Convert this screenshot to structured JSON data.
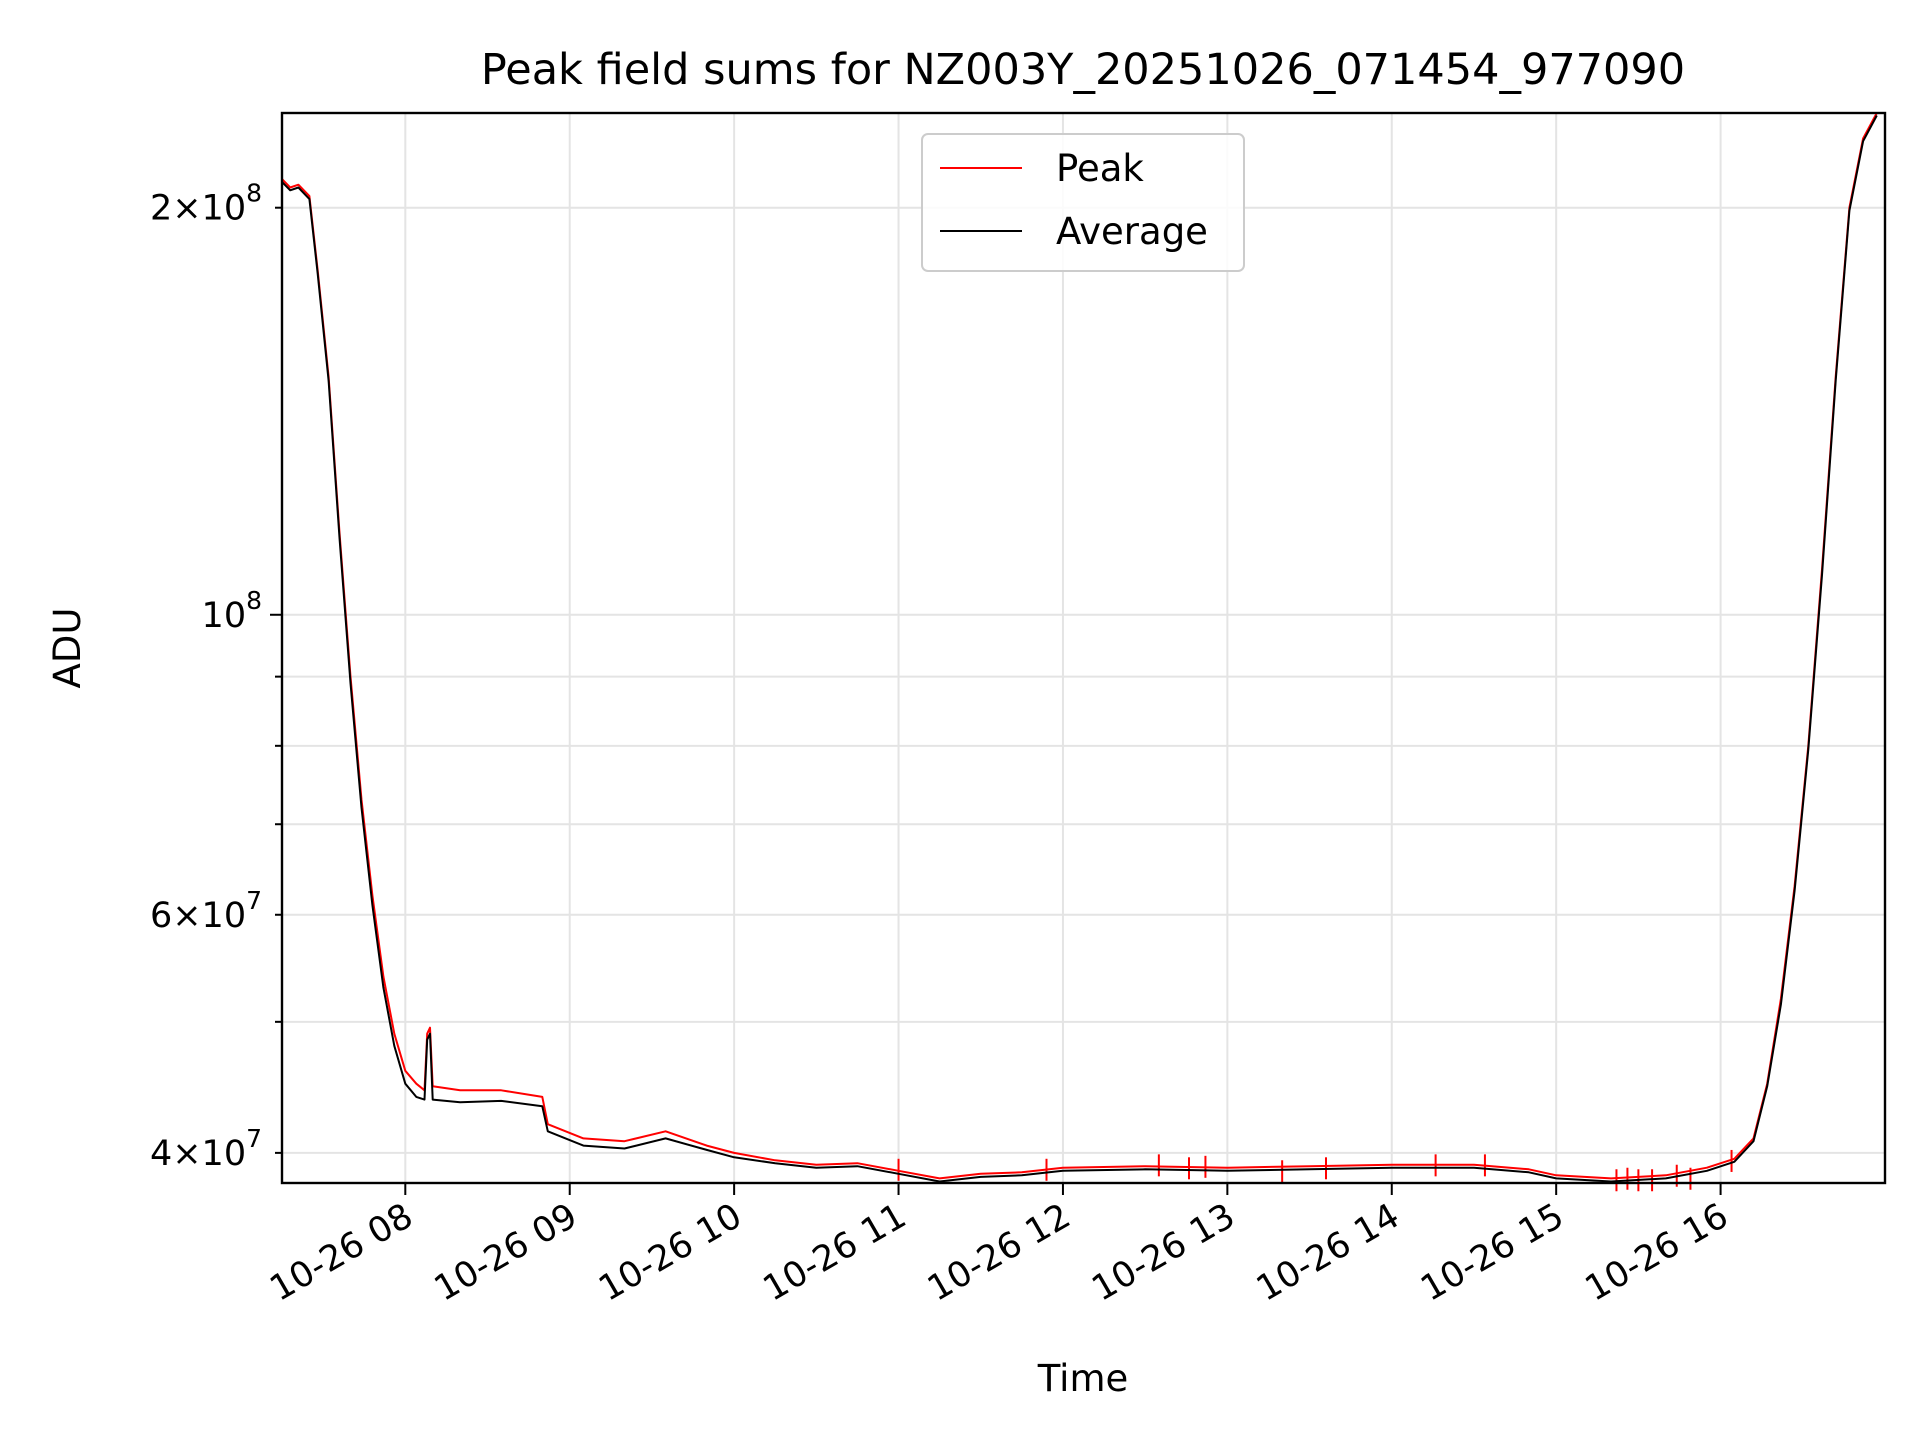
{
  "chart_data": {
    "type": "line",
    "title": "Peak field sums for NZ003Y_20251026_071454_977090",
    "xlabel": "Time",
    "ylabel": "ADU",
    "yscale": "log",
    "grid": true,
    "legend": {
      "placement": "upper-center"
    },
    "xlim": [
      "10-26 07:15",
      "10-26 17:00"
    ],
    "ylim": [
      38000000,
      235000000
    ],
    "x_ticks": [
      {
        "t": "10-26 08:00",
        "label": "10-26 08"
      },
      {
        "t": "10-26 09:00",
        "label": "10-26 09"
      },
      {
        "t": "10-26 10:00",
        "label": "10-26 10"
      },
      {
        "t": "10-26 11:00",
        "label": "10-26 11"
      },
      {
        "t": "10-26 12:00",
        "label": "10-26 12"
      },
      {
        "t": "10-26 13:00",
        "label": "10-26 13"
      },
      {
        "t": "10-26 14:00",
        "label": "10-26 14"
      },
      {
        "t": "10-26 15:00",
        "label": "10-26 15"
      },
      {
        "t": "10-26 16:00",
        "label": "10-26 16"
      }
    ],
    "y_ticks_major": [
      {
        "v": 100000000,
        "base": "10",
        "exp": "8"
      }
    ],
    "y_ticks_minor": [
      {
        "v": 40000000,
        "base": "4×10",
        "exp": "7"
      },
      {
        "v": 60000000,
        "base": "6×10",
        "exp": "7"
      },
      {
        "v": 200000000,
        "base": "2×10",
        "exp": "8"
      }
    ],
    "y_ticks_minor_unlabeled": [
      50000000,
      70000000,
      80000000,
      90000000
    ],
    "series": [
      {
        "name": "Peak",
        "color": "#ff0000",
        "points": [
          [
            "10-26 07:15",
            210000000
          ],
          [
            "10-26 07:18",
            207000000
          ],
          [
            "10-26 07:21",
            208000000
          ],
          [
            "10-26 07:25",
            204000000
          ],
          [
            "10-26 07:28",
            180000000
          ],
          [
            "10-26 07:32",
            150000000
          ],
          [
            "10-26 07:36",
            115000000
          ],
          [
            "10-26 07:40",
            90000000
          ],
          [
            "10-26 07:44",
            73000000
          ],
          [
            "10-26 07:48",
            62000000
          ],
          [
            "10-26 07:52",
            54000000
          ],
          [
            "10-26 07:56",
            49000000
          ],
          [
            "10-26 08:00",
            46000000
          ],
          [
            "10-26 08:04",
            45000000
          ],
          [
            "10-26 08:07",
            44500000
          ],
          [
            "10-26 08:08",
            49000000
          ],
          [
            "10-26 08:09",
            49500000
          ],
          [
            "10-26 08:10",
            44800000
          ],
          [
            "10-26 08:20",
            44500000
          ],
          [
            "10-26 08:35",
            44500000
          ],
          [
            "10-26 08:50",
            44000000
          ],
          [
            "10-26 08:52",
            42000000
          ],
          [
            "10-26 09:05",
            41000000
          ],
          [
            "10-26 09:20",
            40800000
          ],
          [
            "10-26 09:35",
            41500000
          ],
          [
            "10-26 09:50",
            40500000
          ],
          [
            "10-26 10:00",
            40000000
          ],
          [
            "10-26 10:15",
            39500000
          ],
          [
            "10-26 10:30",
            39200000
          ],
          [
            "10-26 10:45",
            39300000
          ],
          [
            "10-26 11:00",
            38800000
          ],
          [
            "10-26 11:15",
            38300000
          ],
          [
            "10-26 11:30",
            38600000
          ],
          [
            "10-26 11:45",
            38700000
          ],
          [
            "10-26 12:00",
            39000000
          ],
          [
            "10-26 12:30",
            39100000
          ],
          [
            "10-26 13:00",
            39000000
          ],
          [
            "10-26 13:30",
            39100000
          ],
          [
            "10-26 14:00",
            39200000
          ],
          [
            "10-26 14:30",
            39200000
          ],
          [
            "10-26 14:50",
            38900000
          ],
          [
            "10-26 15:00",
            38500000
          ],
          [
            "10-26 15:20",
            38300000
          ],
          [
            "10-26 15:40",
            38500000
          ],
          [
            "10-26 15:55",
            39000000
          ],
          [
            "10-26 16:05",
            39600000
          ],
          [
            "10-26 16:12",
            41000000
          ],
          [
            "10-26 16:17",
            45000000
          ],
          [
            "10-26 16:22",
            52000000
          ],
          [
            "10-26 16:27",
            63000000
          ],
          [
            "10-26 16:32",
            80000000
          ],
          [
            "10-26 16:37",
            108000000
          ],
          [
            "10-26 16:42",
            150000000
          ],
          [
            "10-26 16:47",
            200000000
          ],
          [
            "10-26 16:52",
            225000000
          ],
          [
            "10-26 16:57",
            235000000
          ]
        ],
        "spikes": [
          [
            "10-26 11:00",
            39600000
          ],
          [
            "10-26 11:54",
            39600000
          ],
          [
            "10-26 12:35",
            39900000
          ],
          [
            "10-26 12:46",
            39700000
          ],
          [
            "10-26 12:52",
            39800000
          ],
          [
            "10-26 13:20",
            39500000
          ],
          [
            "10-26 13:36",
            39700000
          ],
          [
            "10-26 14:16",
            39900000
          ],
          [
            "10-26 14:34",
            39900000
          ],
          [
            "10-26 15:22",
            38900000
          ],
          [
            "10-26 15:26",
            39000000
          ],
          [
            "10-26 15:30",
            38900000
          ],
          [
            "10-26 15:35",
            38900000
          ],
          [
            "10-26 15:44",
            39200000
          ],
          [
            "10-26 15:49",
            39000000
          ],
          [
            "10-26 16:04",
            40200000
          ]
        ]
      },
      {
        "name": "Average",
        "color": "#000000",
        "points": [
          [
            "10-26 07:15",
            209000000
          ],
          [
            "10-26 07:18",
            206000000
          ],
          [
            "10-26 07:21",
            207000000
          ],
          [
            "10-26 07:25",
            203000000
          ],
          [
            "10-26 07:28",
            179000000
          ],
          [
            "10-26 07:32",
            149000000
          ],
          [
            "10-26 07:36",
            114000000
          ],
          [
            "10-26 07:40",
            89000000
          ],
          [
            "10-26 07:44",
            72000000
          ],
          [
            "10-26 07:48",
            61000000
          ],
          [
            "10-26 07:52",
            53000000
          ],
          [
            "10-26 07:56",
            48000000
          ],
          [
            "10-26 08:00",
            45000000
          ],
          [
            "10-26 08:04",
            44000000
          ],
          [
            "10-26 08:07",
            43800000
          ],
          [
            "10-26 08:08",
            48500000
          ],
          [
            "10-26 08:09",
            49000000
          ],
          [
            "10-26 08:10",
            43800000
          ],
          [
            "10-26 08:20",
            43600000
          ],
          [
            "10-26 08:35",
            43700000
          ],
          [
            "10-26 08:50",
            43300000
          ],
          [
            "10-26 08:52",
            41500000
          ],
          [
            "10-26 09:05",
            40500000
          ],
          [
            "10-26 09:20",
            40300000
          ],
          [
            "10-26 09:35",
            41000000
          ],
          [
            "10-26 09:50",
            40200000
          ],
          [
            "10-26 10:00",
            39700000
          ],
          [
            "10-26 10:15",
            39300000
          ],
          [
            "10-26 10:30",
            39000000
          ],
          [
            "10-26 10:45",
            39100000
          ],
          [
            "10-26 11:00",
            38600000
          ],
          [
            "10-26 11:15",
            38100000
          ],
          [
            "10-26 11:30",
            38400000
          ],
          [
            "10-26 11:45",
            38500000
          ],
          [
            "10-26 12:00",
            38800000
          ],
          [
            "10-26 12:30",
            38900000
          ],
          [
            "10-26 13:00",
            38800000
          ],
          [
            "10-26 13:30",
            38900000
          ],
          [
            "10-26 14:00",
            39000000
          ],
          [
            "10-26 14:30",
            39000000
          ],
          [
            "10-26 14:50",
            38700000
          ],
          [
            "10-26 15:00",
            38300000
          ],
          [
            "10-26 15:20",
            38100000
          ],
          [
            "10-26 15:40",
            38300000
          ],
          [
            "10-26 15:55",
            38800000
          ],
          [
            "10-26 16:05",
            39400000
          ],
          [
            "10-26 16:12",
            40800000
          ],
          [
            "10-26 16:17",
            44800000
          ],
          [
            "10-26 16:22",
            51500000
          ],
          [
            "10-26 16:27",
            62500000
          ],
          [
            "10-26 16:32",
            79500000
          ],
          [
            "10-26 16:37",
            107000000
          ],
          [
            "10-26 16:42",
            149000000
          ],
          [
            "10-26 16:47",
            199000000
          ],
          [
            "10-26 16:52",
            224000000
          ],
          [
            "10-26 16:57",
            234000000
          ]
        ]
      }
    ]
  }
}
